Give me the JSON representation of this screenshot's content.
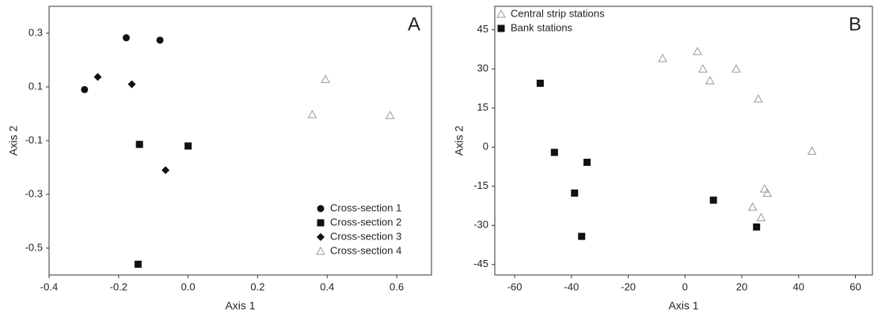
{
  "chart_data": [
    {
      "type": "scatter",
      "panel_label": "A",
      "x_label": "Axis 1",
      "y_label": "Axis 2",
      "xlim": [
        -0.4,
        0.7
      ],
      "ylim": [
        -0.6,
        0.4
      ],
      "xticks": [
        -0.4,
        -0.2,
        {
          "value": 0,
          "label": "0.0"
        },
        0.2,
        0.4,
        0.6
      ],
      "yticks": [
        0.3,
        0.1,
        -0.1,
        -0.3,
        -0.5
      ],
      "legend": "lower right",
      "grid": false,
      "series": [
        {
          "name": "Cross-section 1",
          "marker": "circle",
          "color": "#111111",
          "x": [
            -0.178,
            -0.081,
            -0.298
          ],
          "y": [
            0.283,
            0.274,
            0.09
          ]
        },
        {
          "name": "Cross-section  2",
          "marker": "square",
          "color": "#111111",
          "x": [
            -0.14,
            0.0,
            -0.144
          ],
          "y": [
            -0.114,
            -0.12,
            -0.56
          ]
        },
        {
          "name": "Cross-section  3",
          "marker": "diamond",
          "color": "#111111",
          "x": [
            -0.26,
            -0.162,
            -0.065
          ],
          "y": [
            0.137,
            0.11,
            -0.21
          ]
        },
        {
          "name": "Cross-section  4",
          "marker": "triangle",
          "color": "#999999",
          "x": [
            0.395,
            0.357,
            0.581
          ],
          "y": [
            0.128,
            -0.003,
            -0.006
          ]
        }
      ]
    },
    {
      "type": "scatter",
      "panel_label": "B",
      "x_label": "Axis 1",
      "y_label": "Axis 2",
      "xlim": [
        -67,
        66
      ],
      "ylim": [
        -49,
        54
      ],
      "xticks": [
        -60,
        -40,
        -20,
        0,
        20,
        40,
        60
      ],
      "yticks": [
        45,
        30,
        15,
        0,
        -15,
        -30,
        -45
      ],
      "legend": "upper left",
      "grid": false,
      "series": [
        {
          "name": "Central strip stations",
          "marker": "triangle",
          "color": "#999999",
          "x": [
            -7.9,
            4.4,
            6.3,
            8.8,
            18,
            25.8,
            44.7,
            28,
            29,
            23.8,
            26.8
          ],
          "y": [
            34,
            36.7,
            30,
            25.5,
            30,
            18.5,
            -1.5,
            -16,
            -17.6,
            -23,
            -27
          ]
        },
        {
          "name": "Bank stations",
          "marker": "square",
          "color": "#111111",
          "x": [
            -51,
            -46,
            -34.5,
            -38.9,
            10,
            -36.4,
            25.2
          ],
          "y": [
            24.5,
            -2,
            -5.8,
            -17.6,
            -20.3,
            -34.2,
            -30.6
          ]
        }
      ]
    }
  ]
}
